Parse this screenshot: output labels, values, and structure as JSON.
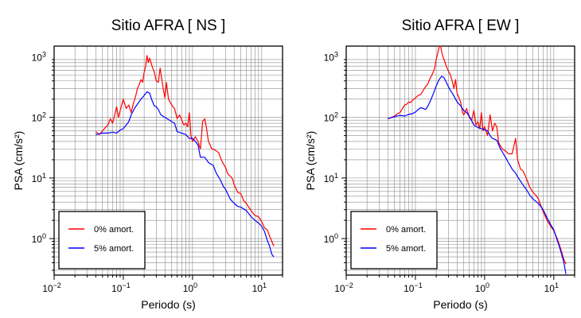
{
  "chart_data": [
    {
      "type": "line",
      "title": "Sitio AFRA [ NS ]",
      "xlabel": "Periodo (s)",
      "ylabel": "PSA (cm/s²)",
      "xscale": "log",
      "yscale": "log",
      "xlim": [
        0.01,
        20
      ],
      "ylim": [
        0.25,
        1500
      ],
      "grid": true,
      "legend": "bottom-left",
      "xticks": [
        {
          "value": 0.01,
          "base": "10",
          "exp": "−2"
        },
        {
          "value": 0.1,
          "base": "10",
          "exp": "−1"
        },
        {
          "value": 1,
          "base": "10",
          "exp": "0"
        },
        {
          "value": 10,
          "base": "10",
          "exp": "1"
        }
      ],
      "yticks": [
        {
          "value": 1,
          "base": "10",
          "exp": "0"
        },
        {
          "value": 10,
          "base": "10",
          "exp": "1"
        },
        {
          "value": 100,
          "base": "10",
          "exp": "2"
        },
        {
          "value": 1000,
          "base": "10",
          "exp": "3"
        }
      ],
      "series": [
        {
          "name": "0% amort.",
          "color": "#ff0000",
          "x": [
            0.04,
            0.045,
            0.05,
            0.055,
            0.06,
            0.065,
            0.07,
            0.075,
            0.08,
            0.085,
            0.09,
            0.1,
            0.11,
            0.12,
            0.13,
            0.14,
            0.15,
            0.16,
            0.17,
            0.18,
            0.19,
            0.2,
            0.21,
            0.22,
            0.23,
            0.24,
            0.26,
            0.28,
            0.3,
            0.32,
            0.34,
            0.36,
            0.38,
            0.4,
            0.42,
            0.45,
            0.5,
            0.55,
            0.6,
            0.65,
            0.7,
            0.75,
            0.8,
            0.85,
            0.9,
            0.95,
            1.0,
            1.1,
            1.2,
            1.3,
            1.4,
            1.5,
            1.6,
            1.7,
            1.8,
            1.9,
            2.0,
            2.2,
            2.4,
            2.6,
            2.8,
            3.0,
            3.2,
            3.4,
            3.6,
            3.8,
            4.0,
            4.5,
            5.0,
            5.5,
            6.0,
            6.5,
            7.0,
            8.0,
            9.0,
            10.0,
            11.0,
            12.0,
            13.0,
            14.0,
            15.0
          ],
          "y": [
            58,
            52,
            60,
            68,
            75,
            95,
            80,
            110,
            150,
            100,
            130,
            200,
            140,
            160,
            120,
            170,
            220,
            300,
            350,
            420,
            380,
            550,
            700,
            1050,
            800,
            950,
            700,
            560,
            400,
            380,
            650,
            420,
            280,
            210,
            380,
            200,
            160,
            140,
            95,
            110,
            90,
            75,
            80,
            70,
            120,
            50,
            40,
            48,
            40,
            30,
            85,
            95,
            65,
            40,
            35,
            30,
            30,
            28,
            26,
            20,
            17,
            15,
            12,
            11,
            10.5,
            9.5,
            7.8,
            5.8,
            5.5,
            4.2,
            3.8,
            3.3,
            2.9,
            2.4,
            2.3,
            1.9,
            1.5,
            1.4,
            1.1,
            0.9,
            0.75
          ]
        },
        {
          "name": "5% amort.",
          "color": "#0000ff",
          "x": [
            0.04,
            0.05,
            0.06,
            0.07,
            0.08,
            0.09,
            0.1,
            0.11,
            0.12,
            0.13,
            0.14,
            0.15,
            0.16,
            0.18,
            0.2,
            0.22,
            0.24,
            0.26,
            0.28,
            0.3,
            0.32,
            0.35,
            0.4,
            0.45,
            0.5,
            0.55,
            0.6,
            0.7,
            0.8,
            0.9,
            1.0,
            1.1,
            1.2,
            1.3,
            1.5,
            1.7,
            2.0,
            2.2,
            2.5,
            2.8,
            3.0,
            3.5,
            4.0,
            4.5,
            5.0,
            6.0,
            7.0,
            8.0,
            9.0,
            10.0,
            11.0,
            12.0,
            13.0,
            14.0,
            15.0
          ],
          "y": [
            52,
            55,
            55,
            57,
            55,
            62,
            65,
            75,
            85,
            110,
            130,
            150,
            165,
            200,
            230,
            265,
            250,
            190,
            155,
            150,
            135,
            110,
            100,
            92,
            85,
            80,
            58,
            55,
            52,
            45,
            45,
            40,
            35,
            22,
            22,
            18,
            16,
            12,
            9.5,
            7.2,
            6.5,
            4.5,
            3.8,
            3.4,
            3.3,
            2.9,
            2.3,
            2.0,
            1.8,
            1.6,
            1.3,
            0.95,
            0.75,
            0.55,
            0.5
          ]
        }
      ]
    },
    {
      "type": "line",
      "title": "Sitio AFRA [ EW ]",
      "xlabel": "Periodo (s)",
      "ylabel": "PSA (cm/s²)",
      "xscale": "log",
      "yscale": "log",
      "xlim": [
        0.01,
        20
      ],
      "ylim": [
        0.25,
        1500
      ],
      "grid": true,
      "legend": "bottom-left",
      "xticks": [
        {
          "value": 0.01,
          "base": "10",
          "exp": "−2"
        },
        {
          "value": 0.1,
          "base": "10",
          "exp": "−1"
        },
        {
          "value": 1,
          "base": "10",
          "exp": "0"
        },
        {
          "value": 10,
          "base": "10",
          "exp": "1"
        }
      ],
      "yticks": [
        {
          "value": 1,
          "base": "10",
          "exp": "0"
        },
        {
          "value": 10,
          "base": "10",
          "exp": "1"
        },
        {
          "value": 100,
          "base": "10",
          "exp": "2"
        },
        {
          "value": 1000,
          "base": "10",
          "exp": "3"
        }
      ],
      "series": [
        {
          "name": "0% amort.",
          "color": "#ff0000",
          "x": [
            0.04,
            0.045,
            0.05,
            0.055,
            0.06,
            0.065,
            0.07,
            0.075,
            0.08,
            0.085,
            0.09,
            0.1,
            0.11,
            0.12,
            0.13,
            0.14,
            0.15,
            0.16,
            0.17,
            0.18,
            0.19,
            0.2,
            0.21,
            0.22,
            0.23,
            0.24,
            0.25,
            0.26,
            0.28,
            0.3,
            0.32,
            0.34,
            0.36,
            0.38,
            0.4,
            0.42,
            0.45,
            0.48,
            0.5,
            0.55,
            0.6,
            0.65,
            0.7,
            0.75,
            0.8,
            0.85,
            0.9,
            0.95,
            1.0,
            1.1,
            1.2,
            1.3,
            1.4,
            1.5,
            1.6,
            1.8,
            2.0,
            2.2,
            2.5,
            2.8,
            3.0,
            3.3,
            3.6,
            4.0,
            4.5,
            5.0,
            5.5,
            6.0,
            6.5,
            7.0,
            8.0,
            9.0,
            10.0,
            11.0,
            12.0,
            13.0,
            14.0,
            15.0
          ],
          "y": [
            95,
            100,
            105,
            115,
            120,
            140,
            160,
            165,
            180,
            175,
            190,
            210,
            230,
            240,
            280,
            320,
            350,
            420,
            480,
            550,
            650,
            900,
            1150,
            1450,
            1550,
            1200,
            1000,
            900,
            700,
            580,
            500,
            400,
            300,
            420,
            250,
            220,
            180,
            120,
            110,
            140,
            100,
            90,
            130,
            75,
            85,
            65,
            120,
            60,
            70,
            50,
            110,
            60,
            80,
            70,
            38,
            30,
            28,
            25,
            25,
            45,
            20,
            14,
            13,
            10,
            7,
            5.8,
            5.2,
            4.5,
            3.5,
            2.8,
            2.0,
            1.6,
            1.35,
            1.05,
            0.8,
            0.6,
            0.45,
            0.38
          ]
        },
        {
          "name": "5% amort.",
          "color": "#0000ff",
          "x": [
            0.04,
            0.05,
            0.06,
            0.07,
            0.08,
            0.09,
            0.1,
            0.11,
            0.12,
            0.13,
            0.14,
            0.15,
            0.16,
            0.17,
            0.18,
            0.2,
            0.22,
            0.24,
            0.26,
            0.28,
            0.3,
            0.32,
            0.35,
            0.4,
            0.45,
            0.5,
            0.55,
            0.6,
            0.7,
            0.8,
            0.9,
            1.0,
            1.1,
            1.2,
            1.3,
            1.5,
            1.7,
            2.0,
            2.2,
            2.5,
            2.8,
            3.0,
            3.5,
            4.0,
            4.5,
            5.0,
            6.0,
            7.0,
            8.0,
            9.0,
            10.0,
            11.0,
            12.0,
            13.0,
            14.0,
            15.0
          ],
          "y": [
            95,
            103,
            108,
            105,
            112,
            115,
            122,
            135,
            145,
            140,
            135,
            150,
            175,
            205,
            240,
            330,
            420,
            480,
            450,
            380,
            320,
            280,
            240,
            180,
            155,
            130,
            120,
            105,
            75,
            68,
            65,
            63,
            60,
            50,
            45,
            42,
            30,
            22,
            18,
            14,
            12,
            10.5,
            8,
            6.5,
            5.2,
            4.5,
            3.8,
            3.0,
            2.2,
            1.7,
            1.4,
            1.0,
            0.75,
            0.55,
            0.4,
            0.26
          ]
        }
      ]
    }
  ]
}
